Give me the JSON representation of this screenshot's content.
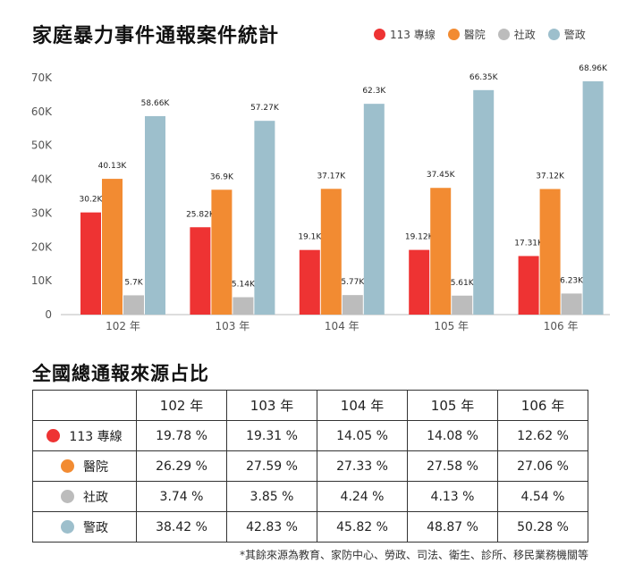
{
  "title": "家庭暴力事件通報案件統計",
  "legend": [
    {
      "label": "113 專線",
      "color": "#ee3333"
    },
    {
      "label": "醫院",
      "color": "#f28b32"
    },
    {
      "label": "社政",
      "color": "#bcbcbc"
    },
    {
      "label": "警政",
      "color": "#9dbfcc"
    }
  ],
  "chart_data": {
    "type": "bar",
    "categories": [
      "102 年",
      "103 年",
      "104 年",
      "105 年",
      "106 年"
    ],
    "series": [
      {
        "name": "113 專線",
        "color": "#ee3333",
        "values": [
          30200,
          25820,
          19100,
          19120,
          17310
        ],
        "labels": [
          "30.2K",
          "25.82K",
          "19.1K",
          "19.12K",
          "17.31K"
        ]
      },
      {
        "name": "醫院",
        "color": "#f28b32",
        "values": [
          40130,
          36900,
          37170,
          37450,
          37120
        ],
        "labels": [
          "40.13K",
          "36.9K",
          "37.17K",
          "37.45K",
          "37.12K"
        ]
      },
      {
        "name": "社政",
        "color": "#bcbcbc",
        "values": [
          5700,
          5140,
          5770,
          5610,
          6230
        ],
        "labels": [
          "5.7K",
          "5.14K",
          "5.77K",
          "5.61K",
          "6.23K"
        ]
      },
      {
        "name": "警政",
        "color": "#9dbfcc",
        "values": [
          58660,
          57270,
          62300,
          66350,
          68960
        ],
        "labels": [
          "58.66K",
          "57.27K",
          "62.3K",
          "66.35K",
          "68.96K"
        ]
      }
    ],
    "yticks": [
      {
        "value": 0,
        "label": "0"
      },
      {
        "value": 10000,
        "label": "10K"
      },
      {
        "value": 20000,
        "label": "20K"
      },
      {
        "value": 30000,
        "label": "30K"
      },
      {
        "value": 40000,
        "label": "40K"
      },
      {
        "value": 50000,
        "label": "50K"
      },
      {
        "value": 60000,
        "label": "60K"
      },
      {
        "value": 70000,
        "label": "70K"
      }
    ],
    "ylim": [
      0,
      70000
    ],
    "grid": false,
    "legend_position": "top-right"
  },
  "table": {
    "title": "全國總通報來源占比",
    "years": [
      "102 年",
      "103 年",
      "104 年",
      "105 年",
      "106 年"
    ],
    "rows": [
      {
        "source": "113 專線",
        "color": "#ee3333",
        "values": [
          "19.78 %",
          "19.31 %",
          "14.05 %",
          "14.08 %",
          "12.62 %"
        ]
      },
      {
        "source": "醫院",
        "color": "#f28b32",
        "values": [
          "26.29 %",
          "27.59 %",
          "27.33 %",
          "27.58 %",
          "27.06 %"
        ]
      },
      {
        "source": "社政",
        "color": "#bcbcbc",
        "values": [
          "3.74 %",
          "3.85 %",
          "4.24 %",
          "4.13 %",
          "4.54 %"
        ]
      },
      {
        "source": "警政",
        "color": "#9dbfcc",
        "values": [
          "38.42 %",
          "42.83 %",
          "45.82 %",
          "48.87 %",
          "50.28 %"
        ]
      }
    ]
  },
  "footnote": "*其餘來源為教育、家防中心、勞政、司法、衛生、診所、移民業務機關等"
}
